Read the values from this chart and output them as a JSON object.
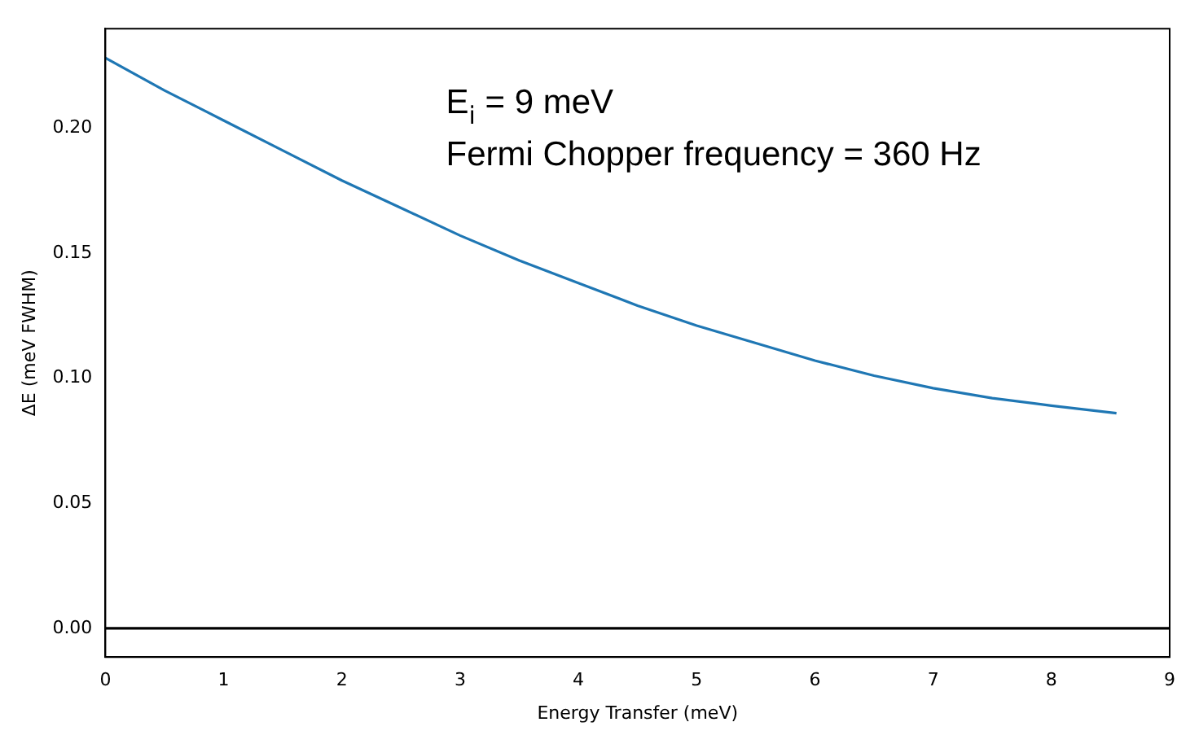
{
  "chart_data": {
    "type": "line",
    "xlabel": "Energy Transfer (meV)",
    "ylabel": "ΔE (meV FWHM)",
    "annotations": [
      "E$_{i}$ = 9 meV",
      "Fermi Chopper frequency = 360 Hz"
    ],
    "series": [
      {
        "color": "#1f77b4",
        "x": [
          0,
          0.5,
          1,
          1.5,
          2,
          2.5,
          3,
          3.5,
          4,
          4.5,
          5,
          5.5,
          6,
          6.5,
          7,
          7.5,
          8,
          8.55
        ],
        "values": [
          0.228,
          0.215,
          0.203,
          0.191,
          0.179,
          0.168,
          0.157,
          0.147,
          0.138,
          0.129,
          0.121,
          0.114,
          0.107,
          0.101,
          0.096,
          0.092,
          0.089,
          0.086
        ]
      }
    ],
    "xlim": [
      0,
      9
    ],
    "ylim": [
      -0.0115,
      0.2397
    ],
    "xticks": [
      0,
      1,
      2,
      3,
      4,
      5,
      6,
      7,
      8,
      9
    ],
    "yticks": [
      {
        "value": 0,
        "label": "0.00"
      },
      0.05,
      {
        "value": 0.1,
        "label": "0.10"
      },
      0.15,
      {
        "value": 0.2,
        "label": "0.20"
      }
    ],
    "ref_lines": [
      {
        "axis": "y",
        "value": 0,
        "color": "#000000"
      }
    ],
    "grid": false,
    "legend": false
  }
}
